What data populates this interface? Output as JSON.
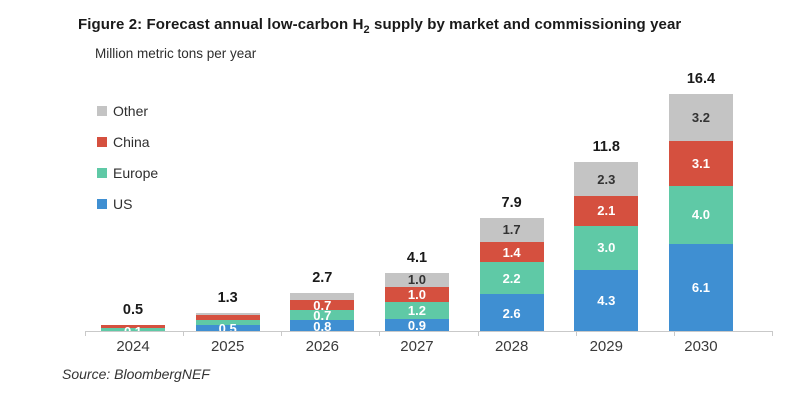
{
  "title": {
    "prefix": "Figure 2: Forecast annual low-carbon H",
    "subscript": "2",
    "suffix": " supply by market and commissioning year"
  },
  "subtitle": "Million metric tons per year",
  "legend": [
    {
      "label": "Other",
      "color": "#c4c4c4"
    },
    {
      "label": "China",
      "color": "#d5503f"
    },
    {
      "label": "Europe",
      "color": "#5fc9a6"
    },
    {
      "label": "US",
      "color": "#3f8fd2"
    }
  ],
  "source": "Source: BloombergNEF",
  "colors": {
    "us": "#3f8fd2",
    "europe": "#5fc9a6",
    "china": "#d5503f",
    "other": "#c4c4c4",
    "axis": "#c9c9c9",
    "total_label": "#1a1a1a"
  },
  "chart_data": {
    "type": "bar",
    "stacked": true,
    "title": "Forecast annual low-carbon H2 supply by market and commissioning year",
    "ylabel": "Million metric tons per year",
    "xlabel": "",
    "ylim": [
      0,
      16.4
    ],
    "grid": false,
    "legend_position": "top-left",
    "categories": [
      "2024",
      "2025",
      "2026",
      "2027",
      "2028",
      "2029",
      "2030"
    ],
    "series": [
      {
        "name": "US",
        "color": "#3f8fd2",
        "label_color": "#ffffff",
        "values": [
          0.1,
          0.5,
          0.8,
          0.9,
          2.6,
          4.3,
          6.1
        ],
        "labels": [
          "0.1",
          "0.5",
          "0.8",
          "0.9",
          "2.6",
          "4.3",
          "6.1"
        ]
      },
      {
        "name": "Europe",
        "color": "#5fc9a6",
        "label_color": "#ffffff",
        "values": [
          0.15,
          0.3,
          0.7,
          1.2,
          2.2,
          3.0,
          4.0
        ],
        "labels": [
          "",
          "",
          "0.7",
          "1.2",
          "2.2",
          "3.0",
          "4.0"
        ]
      },
      {
        "name": "China",
        "color": "#d5503f",
        "label_color": "#ffffff",
        "values": [
          0.2,
          0.4,
          0.7,
          1.0,
          1.4,
          2.1,
          3.1
        ],
        "labels": [
          "",
          "",
          "0.7",
          "1.0",
          "1.4",
          "2.1",
          "3.1"
        ]
      },
      {
        "name": "Other",
        "color": "#c4c4c4",
        "label_color": "#333333",
        "values": [
          0.05,
          0.1,
          0.5,
          1.0,
          1.7,
          2.3,
          3.2
        ],
        "labels": [
          "",
          "",
          "",
          "1.0",
          "1.7",
          "2.3",
          "3.2"
        ]
      }
    ],
    "totals": [
      "0.5",
      "1.3",
      "2.7",
      "4.1",
      "7.9",
      "11.8",
      "16.4"
    ]
  }
}
